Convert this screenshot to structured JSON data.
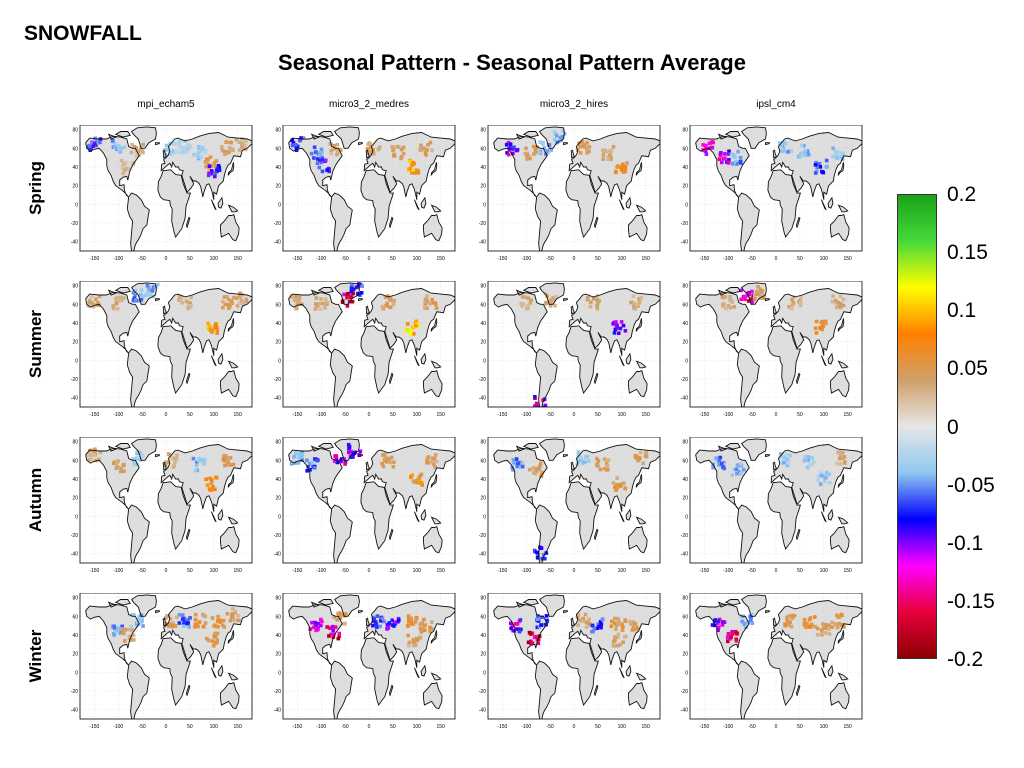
{
  "header": {
    "section": "SNOWFALL",
    "title": "Seasonal Pattern - Seasonal Pattern Average"
  },
  "chart_data": {
    "type": "heatmap",
    "layout": "small-multiples grid, 4 seasons (rows) x 4 models (columns)",
    "columns": [
      "mpi_echam5",
      "micro3_2_medres",
      "micro3_2_hires",
      "ipsl_cm4"
    ],
    "rows": [
      "Spring",
      "Summer",
      "Autumn",
      "Winter"
    ],
    "x_tick_labels": [
      "-150",
      "-100",
      "-50",
      "0",
      "50",
      "100",
      "150"
    ],
    "y_tick_labels": [
      "80",
      "60",
      "40",
      "20",
      "0",
      "-20",
      "-40"
    ],
    "xlim": [
      -180,
      180
    ],
    "ylim": [
      -50,
      85
    ],
    "grid": true,
    "colorbar": {
      "range": [
        -0.2,
        0.2
      ],
      "tick_labels": [
        "0.2",
        "0.15",
        "0.1",
        "0.05",
        "0",
        "-0.05",
        "-0.1",
        "-0.15",
        "-0.2"
      ],
      "tick_values": [
        0.2,
        0.15,
        0.1,
        0.05,
        0,
        -0.05,
        -0.1,
        -0.15,
        -0.2
      ],
      "colors_top_to_bottom": [
        "#1aa31a",
        "#45d83a",
        "#ffff00",
        "#ff8000",
        "#cfa06a",
        "#e6e6e6",
        "#8ec8ef",
        "#0000ff",
        "#ff00ff",
        "#e8003c",
        "#8b0000"
      ],
      "placement": "right"
    },
    "land_color": "#dedede",
    "ocean_color": "#ffffff",
    "patches": {
      "mpi_echam5": {
        "Spring": [
          {
            "lon": -100,
            "lat": 62,
            "v": -0.05
          },
          {
            "lon": -60,
            "lat": 58,
            "v": 0.04
          },
          {
            "lon": 10,
            "lat": 60,
            "v": -0.04
          },
          {
            "lon": 40,
            "lat": 62,
            "v": -0.03
          },
          {
            "lon": 70,
            "lat": 55,
            "v": -0.04
          },
          {
            "lon": 95,
            "lat": 45,
            "v": 0.06
          },
          {
            "lon": 100,
            "lat": 35,
            "v": -0.1
          },
          {
            "lon": 130,
            "lat": 60,
            "v": 0.05
          },
          {
            "lon": -150,
            "lat": 65,
            "v": -0.09
          },
          {
            "lon": 160,
            "lat": 65,
            "v": 0.04
          },
          {
            "lon": -80,
            "lat": 40,
            "v": 0.03
          }
        ],
        "Summer": [
          {
            "lon": -100,
            "lat": 62,
            "v": 0.04
          },
          {
            "lon": -60,
            "lat": 70,
            "v": -0.06
          },
          {
            "lon": -30,
            "lat": 75,
            "v": -0.05
          },
          {
            "lon": 40,
            "lat": 62,
            "v": 0.04
          },
          {
            "lon": 95,
            "lat": 35,
            "v": 0.1
          },
          {
            "lon": 130,
            "lat": 62,
            "v": 0.05
          },
          {
            "lon": -150,
            "lat": 62,
            "v": 0.04
          },
          {
            "lon": 160,
            "lat": 65,
            "v": 0.04
          }
        ],
        "Autumn": [
          {
            "lon": -100,
            "lat": 55,
            "v": 0.05
          },
          {
            "lon": -60,
            "lat": 62,
            "v": -0.04
          },
          {
            "lon": 10,
            "lat": 60,
            "v": 0.04
          },
          {
            "lon": 70,
            "lat": 55,
            "v": -0.05
          },
          {
            "lon": 95,
            "lat": 35,
            "v": 0.08
          },
          {
            "lon": 130,
            "lat": 60,
            "v": 0.05
          },
          {
            "lon": -150,
            "lat": 65,
            "v": 0.04
          }
        ],
        "Winter": [
          {
            "lon": -100,
            "lat": 45,
            "v": -0.06
          },
          {
            "lon": -80,
            "lat": 40,
            "v": 0.05
          },
          {
            "lon": -60,
            "lat": 55,
            "v": -0.05
          },
          {
            "lon": 10,
            "lat": 55,
            "v": 0.05
          },
          {
            "lon": 40,
            "lat": 55,
            "v": -0.07
          },
          {
            "lon": 70,
            "lat": 55,
            "v": 0.06
          },
          {
            "lon": 110,
            "lat": 55,
            "v": 0.07
          },
          {
            "lon": 95,
            "lat": 35,
            "v": 0.06
          },
          {
            "lon": 140,
            "lat": 62,
            "v": 0.05
          }
        ]
      },
      "micro3_2_medres": {
        "Spring": [
          {
            "lon": -110,
            "lat": 55,
            "v": -0.06
          },
          {
            "lon": -70,
            "lat": 60,
            "v": 0.04
          },
          {
            "lon": 10,
            "lat": 60,
            "v": 0.05
          },
          {
            "lon": 60,
            "lat": 55,
            "v": 0.05
          },
          {
            "lon": 95,
            "lat": 40,
            "v": 0.1
          },
          {
            "lon": 120,
            "lat": 60,
            "v": 0.05
          },
          {
            "lon": -150,
            "lat": 65,
            "v": -0.08
          },
          {
            "lon": -95,
            "lat": 42,
            "v": -0.1
          }
        ],
        "Summer": [
          {
            "lon": -100,
            "lat": 60,
            "v": 0.04
          },
          {
            "lon": -45,
            "lat": 65,
            "v": -0.18
          },
          {
            "lon": -25,
            "lat": 75,
            "v": -0.08
          },
          {
            "lon": 40,
            "lat": 62,
            "v": 0.05
          },
          {
            "lon": 90,
            "lat": 35,
            "v": 0.12
          },
          {
            "lon": 130,
            "lat": 62,
            "v": 0.05
          },
          {
            "lon": -150,
            "lat": 62,
            "v": 0.04
          }
        ],
        "Autumn": [
          {
            "lon": -120,
            "lat": 55,
            "v": -0.07
          },
          {
            "lon": -60,
            "lat": 62,
            "v": -0.13
          },
          {
            "lon": -30,
            "lat": 70,
            "v": -0.1
          },
          {
            "lon": 40,
            "lat": 60,
            "v": 0.05
          },
          {
            "lon": 100,
            "lat": 40,
            "v": 0.08
          },
          {
            "lon": 130,
            "lat": 60,
            "v": 0.05
          },
          {
            "lon": -150,
            "lat": 62,
            "v": -0.05
          }
        ],
        "Winter": [
          {
            "lon": -110,
            "lat": 50,
            "v": -0.12
          },
          {
            "lon": -75,
            "lat": 42,
            "v": -0.18
          },
          {
            "lon": -60,
            "lat": 58,
            "v": 0.05
          },
          {
            "lon": 20,
            "lat": 55,
            "v": -0.08
          },
          {
            "lon": 50,
            "lat": 52,
            "v": -0.1
          },
          {
            "lon": 90,
            "lat": 55,
            "v": 0.06
          },
          {
            "lon": 120,
            "lat": 50,
            "v": 0.06
          },
          {
            "lon": 95,
            "lat": 35,
            "v": 0.05
          }
        ]
      },
      "micro3_2_hires": {
        "Spring": [
          {
            "lon": -130,
            "lat": 60,
            "v": -0.12
          },
          {
            "lon": -90,
            "lat": 55,
            "v": 0.05
          },
          {
            "lon": -60,
            "lat": 60,
            "v": -0.05
          },
          {
            "lon": 20,
            "lat": 60,
            "v": 0.05
          },
          {
            "lon": 70,
            "lat": 55,
            "v": 0.04
          },
          {
            "lon": 100,
            "lat": 40,
            "v": 0.07
          },
          {
            "lon": -30,
            "lat": 72,
            "v": -0.05
          }
        ],
        "Summer": [
          {
            "lon": -100,
            "lat": 62,
            "v": 0.04
          },
          {
            "lon": -50,
            "lat": 65,
            "v": 0.04
          },
          {
            "lon": 40,
            "lat": 62,
            "v": 0.04
          },
          {
            "lon": 95,
            "lat": 35,
            "v": -0.13
          },
          {
            "lon": -70,
            "lat": -45,
            "v": -0.15
          },
          {
            "lon": 130,
            "lat": 62,
            "v": 0.04
          }
        ],
        "Autumn": [
          {
            "lon": -120,
            "lat": 55,
            "v": -0.06
          },
          {
            "lon": -80,
            "lat": 50,
            "v": 0.05
          },
          {
            "lon": 20,
            "lat": 62,
            "v": -0.04
          },
          {
            "lon": 60,
            "lat": 55,
            "v": 0.05
          },
          {
            "lon": 95,
            "lat": 35,
            "v": 0.06
          },
          {
            "lon": 140,
            "lat": 62,
            "v": 0.05
          },
          {
            "lon": -70,
            "lat": -40,
            "v": -0.08
          }
        ],
        "Winter": [
          {
            "lon": -120,
            "lat": 50,
            "v": -0.12
          },
          {
            "lon": -85,
            "lat": 38,
            "v": -0.18
          },
          {
            "lon": -65,
            "lat": 55,
            "v": -0.08
          },
          {
            "lon": 20,
            "lat": 55,
            "v": 0.05
          },
          {
            "lon": 50,
            "lat": 50,
            "v": -0.08
          },
          {
            "lon": 90,
            "lat": 52,
            "v": 0.06
          },
          {
            "lon": 120,
            "lat": 50,
            "v": 0.05
          },
          {
            "lon": 95,
            "lat": 35,
            "v": 0.05
          }
        ]
      },
      "ipsl_cm4": {
        "Spring": [
          {
            "lon": -140,
            "lat": 60,
            "v": -0.15
          },
          {
            "lon": -110,
            "lat": 50,
            "v": -0.13
          },
          {
            "lon": -80,
            "lat": 50,
            "v": -0.06
          },
          {
            "lon": 20,
            "lat": 60,
            "v": -0.05
          },
          {
            "lon": 60,
            "lat": 58,
            "v": -0.05
          },
          {
            "lon": 95,
            "lat": 40,
            "v": -0.08
          },
          {
            "lon": 130,
            "lat": 55,
            "v": -0.04
          }
        ],
        "Summer": [
          {
            "lon": -100,
            "lat": 62,
            "v": 0.04
          },
          {
            "lon": -60,
            "lat": 68,
            "v": -0.16
          },
          {
            "lon": -35,
            "lat": 72,
            "v": 0.05
          },
          {
            "lon": 40,
            "lat": 62,
            "v": 0.04
          },
          {
            "lon": 95,
            "lat": 35,
            "v": 0.08
          },
          {
            "lon": 130,
            "lat": 62,
            "v": 0.04
          }
        ],
        "Autumn": [
          {
            "lon": -120,
            "lat": 58,
            "v": -0.06
          },
          {
            "lon": -80,
            "lat": 50,
            "v": -0.05
          },
          {
            "lon": 20,
            "lat": 60,
            "v": -0.04
          },
          {
            "lon": 70,
            "lat": 58,
            "v": -0.04
          },
          {
            "lon": 100,
            "lat": 40,
            "v": -0.04
          },
          {
            "lon": 140,
            "lat": 62,
            "v": 0.04
          }
        ],
        "Winter": [
          {
            "lon": -120,
            "lat": 50,
            "v": -0.13
          },
          {
            "lon": -90,
            "lat": 40,
            "v": -0.16
          },
          {
            "lon": -60,
            "lat": 55,
            "v": -0.06
          },
          {
            "lon": 30,
            "lat": 55,
            "v": 0.06
          },
          {
            "lon": 70,
            "lat": 55,
            "v": 0.07
          },
          {
            "lon": 100,
            "lat": 45,
            "v": 0.05
          },
          {
            "lon": 130,
            "lat": 55,
            "v": 0.06
          }
        ]
      }
    }
  }
}
